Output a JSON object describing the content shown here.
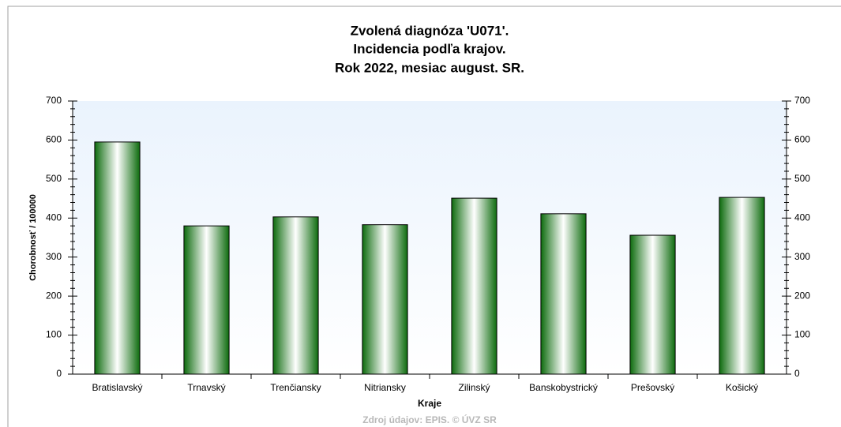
{
  "chart_data": {
    "type": "bar",
    "title": [
      "Zvolená diagnóza 'U071'.",
      "Incidencia podľa krajov.",
      "Rok 2022, mesiac august. SR."
    ],
    "x_label": "Kraje",
    "y_label": "Chorobnosť / 100000",
    "source": "Zdroj údajov: EPIS. © ÚVZ SR",
    "categories": [
      "Bratislavský",
      "Trnavský",
      "Trenčiansky",
      "Nitriansky",
      "Zilinský",
      "Banskobystrický",
      "Prešovský",
      "Košický"
    ],
    "values": [
      595,
      380,
      403,
      383,
      451,
      411,
      356,
      453
    ],
    "color": "#1f8a1f",
    "ylim": [
      0,
      700
    ],
    "yticks": [
      0,
      100,
      200,
      300,
      400,
      500,
      600,
      700
    ],
    "y2lim": [
      0,
      700
    ],
    "y2ticks": [
      0,
      100,
      200,
      300,
      400,
      500,
      600,
      700
    ]
  }
}
